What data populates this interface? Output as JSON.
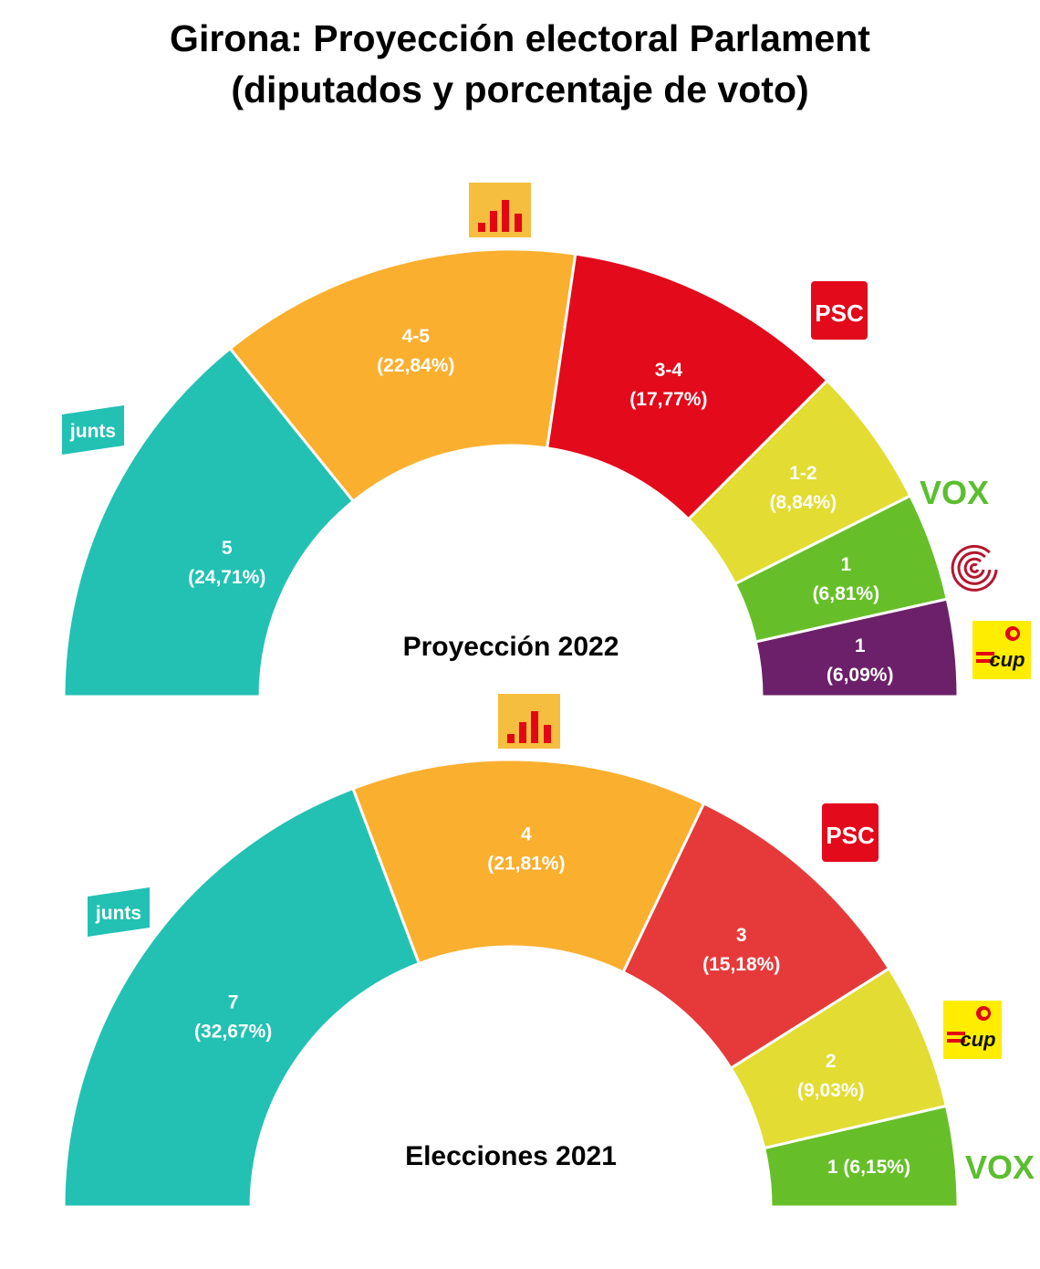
{
  "title": {
    "line1": "Girona: Proyección electoral Parlament",
    "line2": "(diputados y porcentaje de voto)"
  },
  "chart_data": [
    {
      "type": "pie",
      "name": "Proyección 2022",
      "categories": [
        "Junts",
        "ERC",
        "PSC",
        "Vox",
        "Comuns",
        "CUP"
      ],
      "seats": [
        "5",
        "4-5",
        "3-4",
        "1-2",
        "1",
        "1"
      ],
      "values": [
        24.71,
        22.84,
        17.77,
        8.84,
        6.81,
        6.09
      ],
      "labels": [
        "(24,71%)",
        "(22,84%)",
        "(17,77%)",
        "(8,84%)",
        "(6,81%)",
        "(6,09%)"
      ],
      "colors": [
        "#22C1B3",
        "#FBAF2F",
        "#E20A1B",
        "#E3DC32",
        "#66BF28",
        "#6B2069"
      ],
      "logos": [
        "junts-logo",
        "erc-logo",
        "psc-logo",
        "vox-logo",
        "comuns-logo",
        "cup-logo"
      ]
    },
    {
      "type": "pie",
      "name": "Elecciones 2021",
      "categories": [
        "Junts",
        "ERC",
        "PSC",
        "CUP",
        "Vox"
      ],
      "seats": [
        "7",
        "4",
        "3",
        "2",
        "1"
      ],
      "values": [
        32.67,
        21.81,
        15.18,
        9.03,
        6.15
      ],
      "labels": [
        "(32,67%)",
        "(21,81%)",
        "(15,18%)",
        "(9,03%)",
        "1 (6,15%)"
      ],
      "colors": [
        "#22C1B3",
        "#FBAF2F",
        "#E63A3A",
        "#E3DC32",
        "#66BF28"
      ],
      "logos": [
        "junts-logo",
        "erc-logo",
        "psc-logo",
        "cup-logo",
        "vox-logo"
      ]
    }
  ],
  "logo_text": {
    "junts": "junts",
    "psc": "PSC",
    "vox": "VOX",
    "cup": "cup"
  }
}
